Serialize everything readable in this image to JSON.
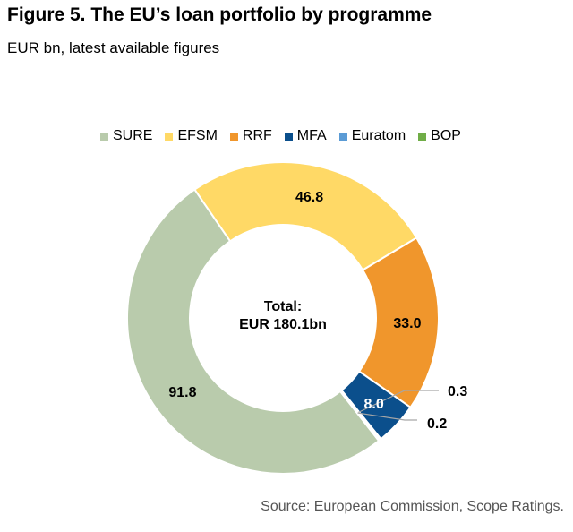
{
  "header": {
    "title": "Figure 5. The EU’s loan portfolio by programme",
    "subtitle": "EUR bn, latest available figures"
  },
  "center_label": {
    "line1": "Total:",
    "line2": "EUR 180.1bn"
  },
  "footer": {
    "source": "Source: European Commission, Scope Ratings."
  },
  "chart_data": {
    "type": "pie",
    "subtype": "donut",
    "legend_position": "top",
    "categories": [
      "SURE",
      "EFSM",
      "RRF",
      "MFA",
      "Euratom",
      "BOP"
    ],
    "values": [
      91.8,
      46.8,
      33.0,
      8.0,
      0.3,
      0.2
    ],
    "labels": [
      "91.8",
      "46.8",
      "33.0",
      "8.0",
      "0.3",
      "0.2"
    ],
    "colors": [
      "#b9cbac",
      "#ffd966",
      "#f0962c",
      "#0b4f8c",
      "#5b9bd5",
      "#70ad47"
    ]
  }
}
